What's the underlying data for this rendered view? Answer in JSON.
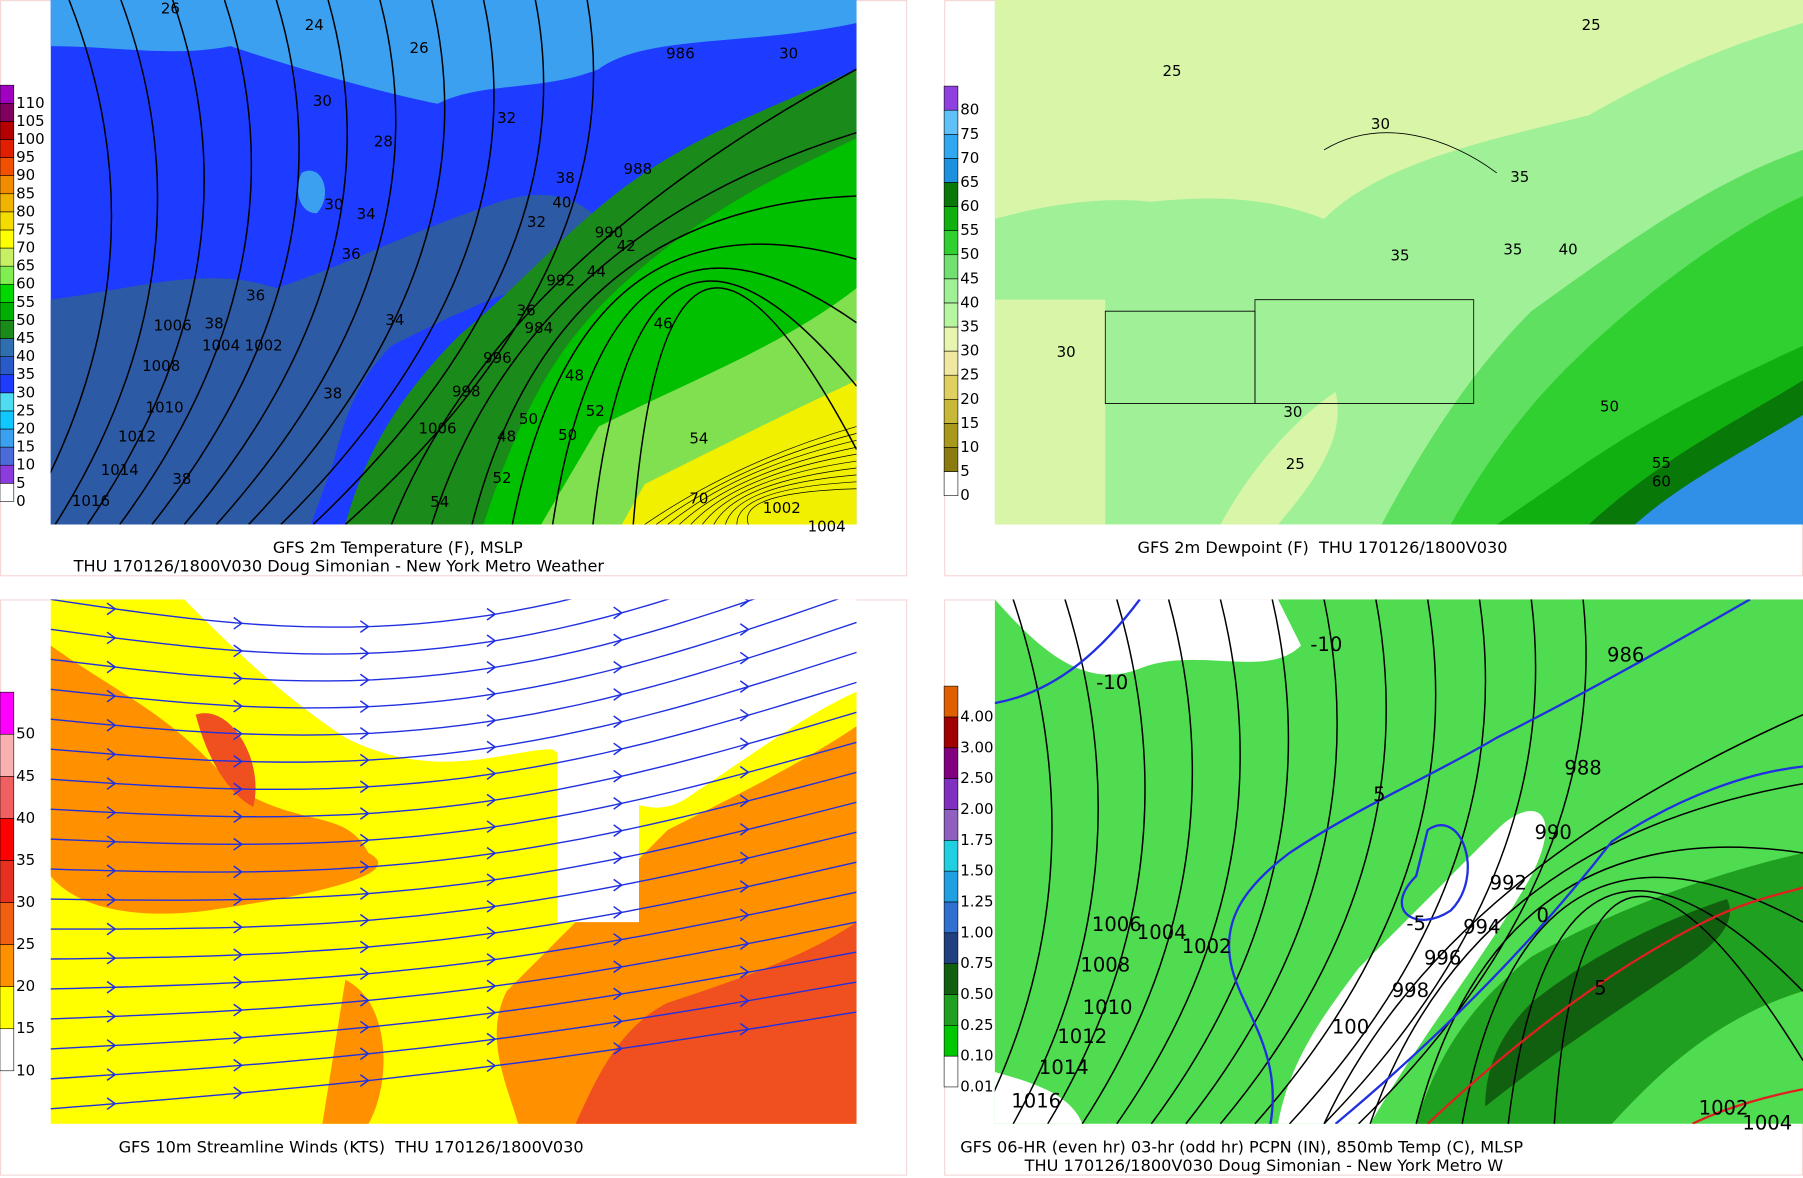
{
  "panels": [
    {
      "caption": [
        "GFS 2m Temperature (F), MSLP",
        "THU 170126/1800V030 Doug Simonian - New York Metro Weather"
      ],
      "colorbar": {
        "labels": [
          "0",
          "5",
          "10",
          "15",
          "20",
          "25",
          "30",
          "35",
          "40",
          "45",
          "50",
          "55",
          "60",
          "65",
          "70",
          "75",
          "80",
          "85",
          "90",
          "95",
          "100",
          "105",
          "110"
        ],
        "colors": [
          "#ffffff",
          "#8c3cdc",
          "#4b6bd9",
          "#3ca0f0",
          "#10c8ff",
          "#50dcf0",
          "#1e3cff",
          "#2a5ac8",
          "#2f6fb0",
          "#1a8a1a",
          "#00b000",
          "#00d800",
          "#80ee50",
          "#c8f064",
          "#ffff00",
          "#f5dc00",
          "#f0b400",
          "#f08c00",
          "#f05000",
          "#e01e00",
          "#b40000",
          "#800060",
          "#a000c0"
        ]
      },
      "contour_labels": [
        "26",
        "24",
        "26",
        "30",
        "28",
        "32",
        "986",
        "30",
        "988",
        "30",
        "34",
        "38",
        "40",
        "32",
        "990",
        "36",
        "42",
        "992",
        "44",
        "36",
        "34",
        "36",
        "984",
        "46",
        "1006",
        "38",
        "1004",
        "1002",
        "48",
        "996",
        "1008",
        "38",
        "998",
        "50",
        "52",
        "1010",
        "1006",
        "50",
        "54",
        "1012",
        "48",
        "1014",
        "38",
        "52",
        "70",
        "1002",
        "1004",
        "54",
        "1016"
      ]
    },
    {
      "caption": [
        "GFS 2m Dewpoint (F)  THU 170126/1800V030"
      ],
      "colorbar": {
        "labels": [
          "0",
          "5",
          "10",
          "15",
          "20",
          "25",
          "30",
          "35",
          "40",
          "45",
          "50",
          "55",
          "60",
          "65",
          "70",
          "75",
          "80"
        ],
        "colors": [
          "#ffffff",
          "#8a7a10",
          "#a8981c",
          "#c8b838",
          "#e0d060",
          "#f0e8a0",
          "#e8f5b0",
          "#b8f5a0",
          "#a0f098",
          "#70e070",
          "#30d030",
          "#10b010",
          "#087808",
          "#1e90e0",
          "#30a8f0",
          "#60c0f8",
          "#9040e0"
        ]
      },
      "contour_labels": [
        "25",
        "25",
        "30",
        "35",
        "35",
        "35",
        "40",
        "30",
        "30",
        "25",
        "50",
        "55",
        "60"
      ]
    },
    {
      "caption": [
        "GFS 10m Streamline Winds (KTS)  THU 170126/1800V030"
      ],
      "colorbar": {
        "labels": [
          "10",
          "15",
          "20",
          "25",
          "30",
          "35",
          "40",
          "45",
          "50"
        ],
        "colors": [
          "#ffffff",
          "#ffff00",
          "#ff9000",
          "#f06010",
          "#e83020",
          "#ff0000",
          "#f06060",
          "#f8b0b0",
          "#ff00ff"
        ]
      },
      "contour_labels": []
    },
    {
      "caption": [
        "GFS 06-HR (even hr) 03-hr (odd hr) PCPN (IN), 850mb Temp (C), MLSP",
        "THU 170126/1800V030 Doug Simonian - New York Metro W"
      ],
      "colorbar": {
        "labels": [
          "0.01",
          "0.10",
          "0.25",
          "0.50",
          "0.75",
          "1.00",
          "1.25",
          "1.50",
          "1.75",
          "2.00",
          "2.50",
          "3.00",
          "4.00"
        ],
        "colors": [
          "#ffffff",
          "#00c800",
          "#20a020",
          "#106010",
          "#204080",
          "#3070d0",
          "#20a0e0",
          "#20d0e0",
          "#9060c0",
          "#8030c0",
          "#800080",
          "#a00000",
          "#e06000"
        ]
      },
      "contour_labels": [
        "-10",
        "-10",
        "986",
        "988",
        "5",
        "990",
        "992",
        "-5",
        "994",
        "0",
        "996",
        "1006",
        "1004",
        "1002",
        "1008",
        "998",
        "1010",
        "1012",
        "100",
        "5",
        "1014",
        "1016",
        "1002",
        "1004"
      ]
    }
  ]
}
